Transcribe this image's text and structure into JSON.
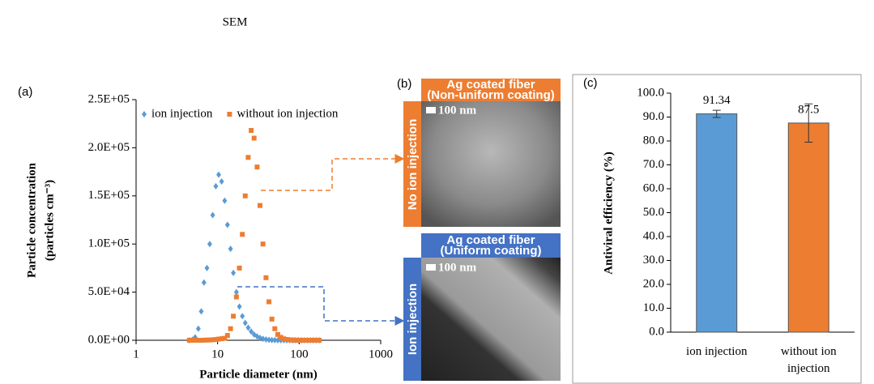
{
  "header": "SEM",
  "chart_data": [
    {
      "type": "scatter",
      "panel_label": "(a)",
      "xlabel": "Particle diameter (nm)",
      "ylabel": [
        "Particle concentration",
        "(particles cm⁻³)"
      ],
      "xlog": true,
      "xlim": [
        1,
        1000
      ],
      "xticks": [
        1,
        10,
        100,
        1000
      ],
      "ylim": [
        0,
        250000
      ],
      "yticks": [
        {
          "value": 0,
          "label": "0.0E+00"
        },
        {
          "value": 50000,
          "label": "5.0E+04"
        },
        {
          "value": 100000,
          "label": "1.0E+05"
        },
        {
          "value": 150000,
          "label": "1.5E+05"
        },
        {
          "value": 200000,
          "label": "2.0E+05"
        },
        {
          "value": 250000,
          "label": "2.5E+05"
        }
      ],
      "legend": "upper left",
      "x": [
        4.5,
        4.9,
        5.3,
        5.8,
        6.3,
        6.8,
        7.4,
        8.0,
        8.7,
        9.5,
        10.3,
        11.2,
        12.2,
        13.2,
        14.4,
        15.6,
        17.0,
        18.5,
        20.1,
        21.8,
        23.7,
        25.8,
        28.0,
        30.5,
        33.1,
        36.0,
        39.2,
        42.6,
        46.3,
        50.3,
        54.7,
        59.5,
        64.7,
        70.3,
        76.4,
        83.1,
        90.3,
        98.2,
        106.8,
        116,
        126,
        137,
        149,
        162,
        176
      ],
      "series": [
        {
          "name": "ion injection",
          "color": "#5b9bd5",
          "marker": "diamond",
          "values": [
            0,
            500,
            3000,
            12000,
            30000,
            60000,
            75000,
            100000,
            130000,
            160000,
            172000,
            165000,
            145000,
            120000,
            95000,
            70000,
            50000,
            35000,
            25000,
            18000,
            13000,
            9000,
            6000,
            4000,
            2500,
            1500,
            800,
            400,
            200,
            100,
            50,
            0,
            0,
            0,
            0,
            0,
            0,
            0,
            0,
            0,
            0,
            0,
            0,
            0,
            0
          ]
        },
        {
          "name": "without ion injection",
          "color": "#ed7d31",
          "marker": "square",
          "values": [
            0,
            0,
            0,
            0,
            0,
            100,
            200,
            300,
            500,
            800,
            1200,
            1600,
            2000,
            5000,
            12000,
            25000,
            45000,
            75000,
            110000,
            150000,
            190000,
            218000,
            210000,
            180000,
            140000,
            100000,
            65000,
            40000,
            22000,
            12000,
            6000,
            3000,
            1500,
            800,
            400,
            200,
            100,
            50,
            0,
            0,
            0,
            0,
            0,
            0,
            0
          ]
        }
      ]
    },
    {
      "type": "bar",
      "panel_label": "(c)",
      "ylabel": "Antiviral efficiency (%)",
      "categories": [
        "ion injection",
        "without ion injection"
      ],
      "values": [
        91.34,
        87.5
      ],
      "errors": [
        1.5,
        8
      ],
      "colors": [
        "#5b9bd5",
        "#ed7d31"
      ],
      "ylim": [
        0,
        100
      ],
      "yticks": [
        {
          "value": 0,
          "label": "0.0"
        },
        {
          "value": 10,
          "label": "10.0"
        },
        {
          "value": 20,
          "label": "20.0"
        },
        {
          "value": 30,
          "label": "30.0"
        },
        {
          "value": 40,
          "label": "40.0"
        },
        {
          "value": 50,
          "label": "50.0"
        },
        {
          "value": 60,
          "label": "60.0"
        },
        {
          "value": 70,
          "label": "70.0"
        },
        {
          "value": 80,
          "label": "80.0"
        },
        {
          "value": 90,
          "label": "90.0"
        },
        {
          "value": 100,
          "label": "100.0"
        }
      ]
    }
  ],
  "panel_b": {
    "label": "(b)",
    "top": {
      "header": [
        "Ag coated fiber",
        "(Non-uniform coating)"
      ],
      "side": "No ion injection",
      "scale": "100 nm"
    },
    "bottom": {
      "header": [
        "Ag coated fiber",
        "(Uniform coating)"
      ],
      "side": "Ion injection",
      "scale": "100 nm"
    }
  }
}
